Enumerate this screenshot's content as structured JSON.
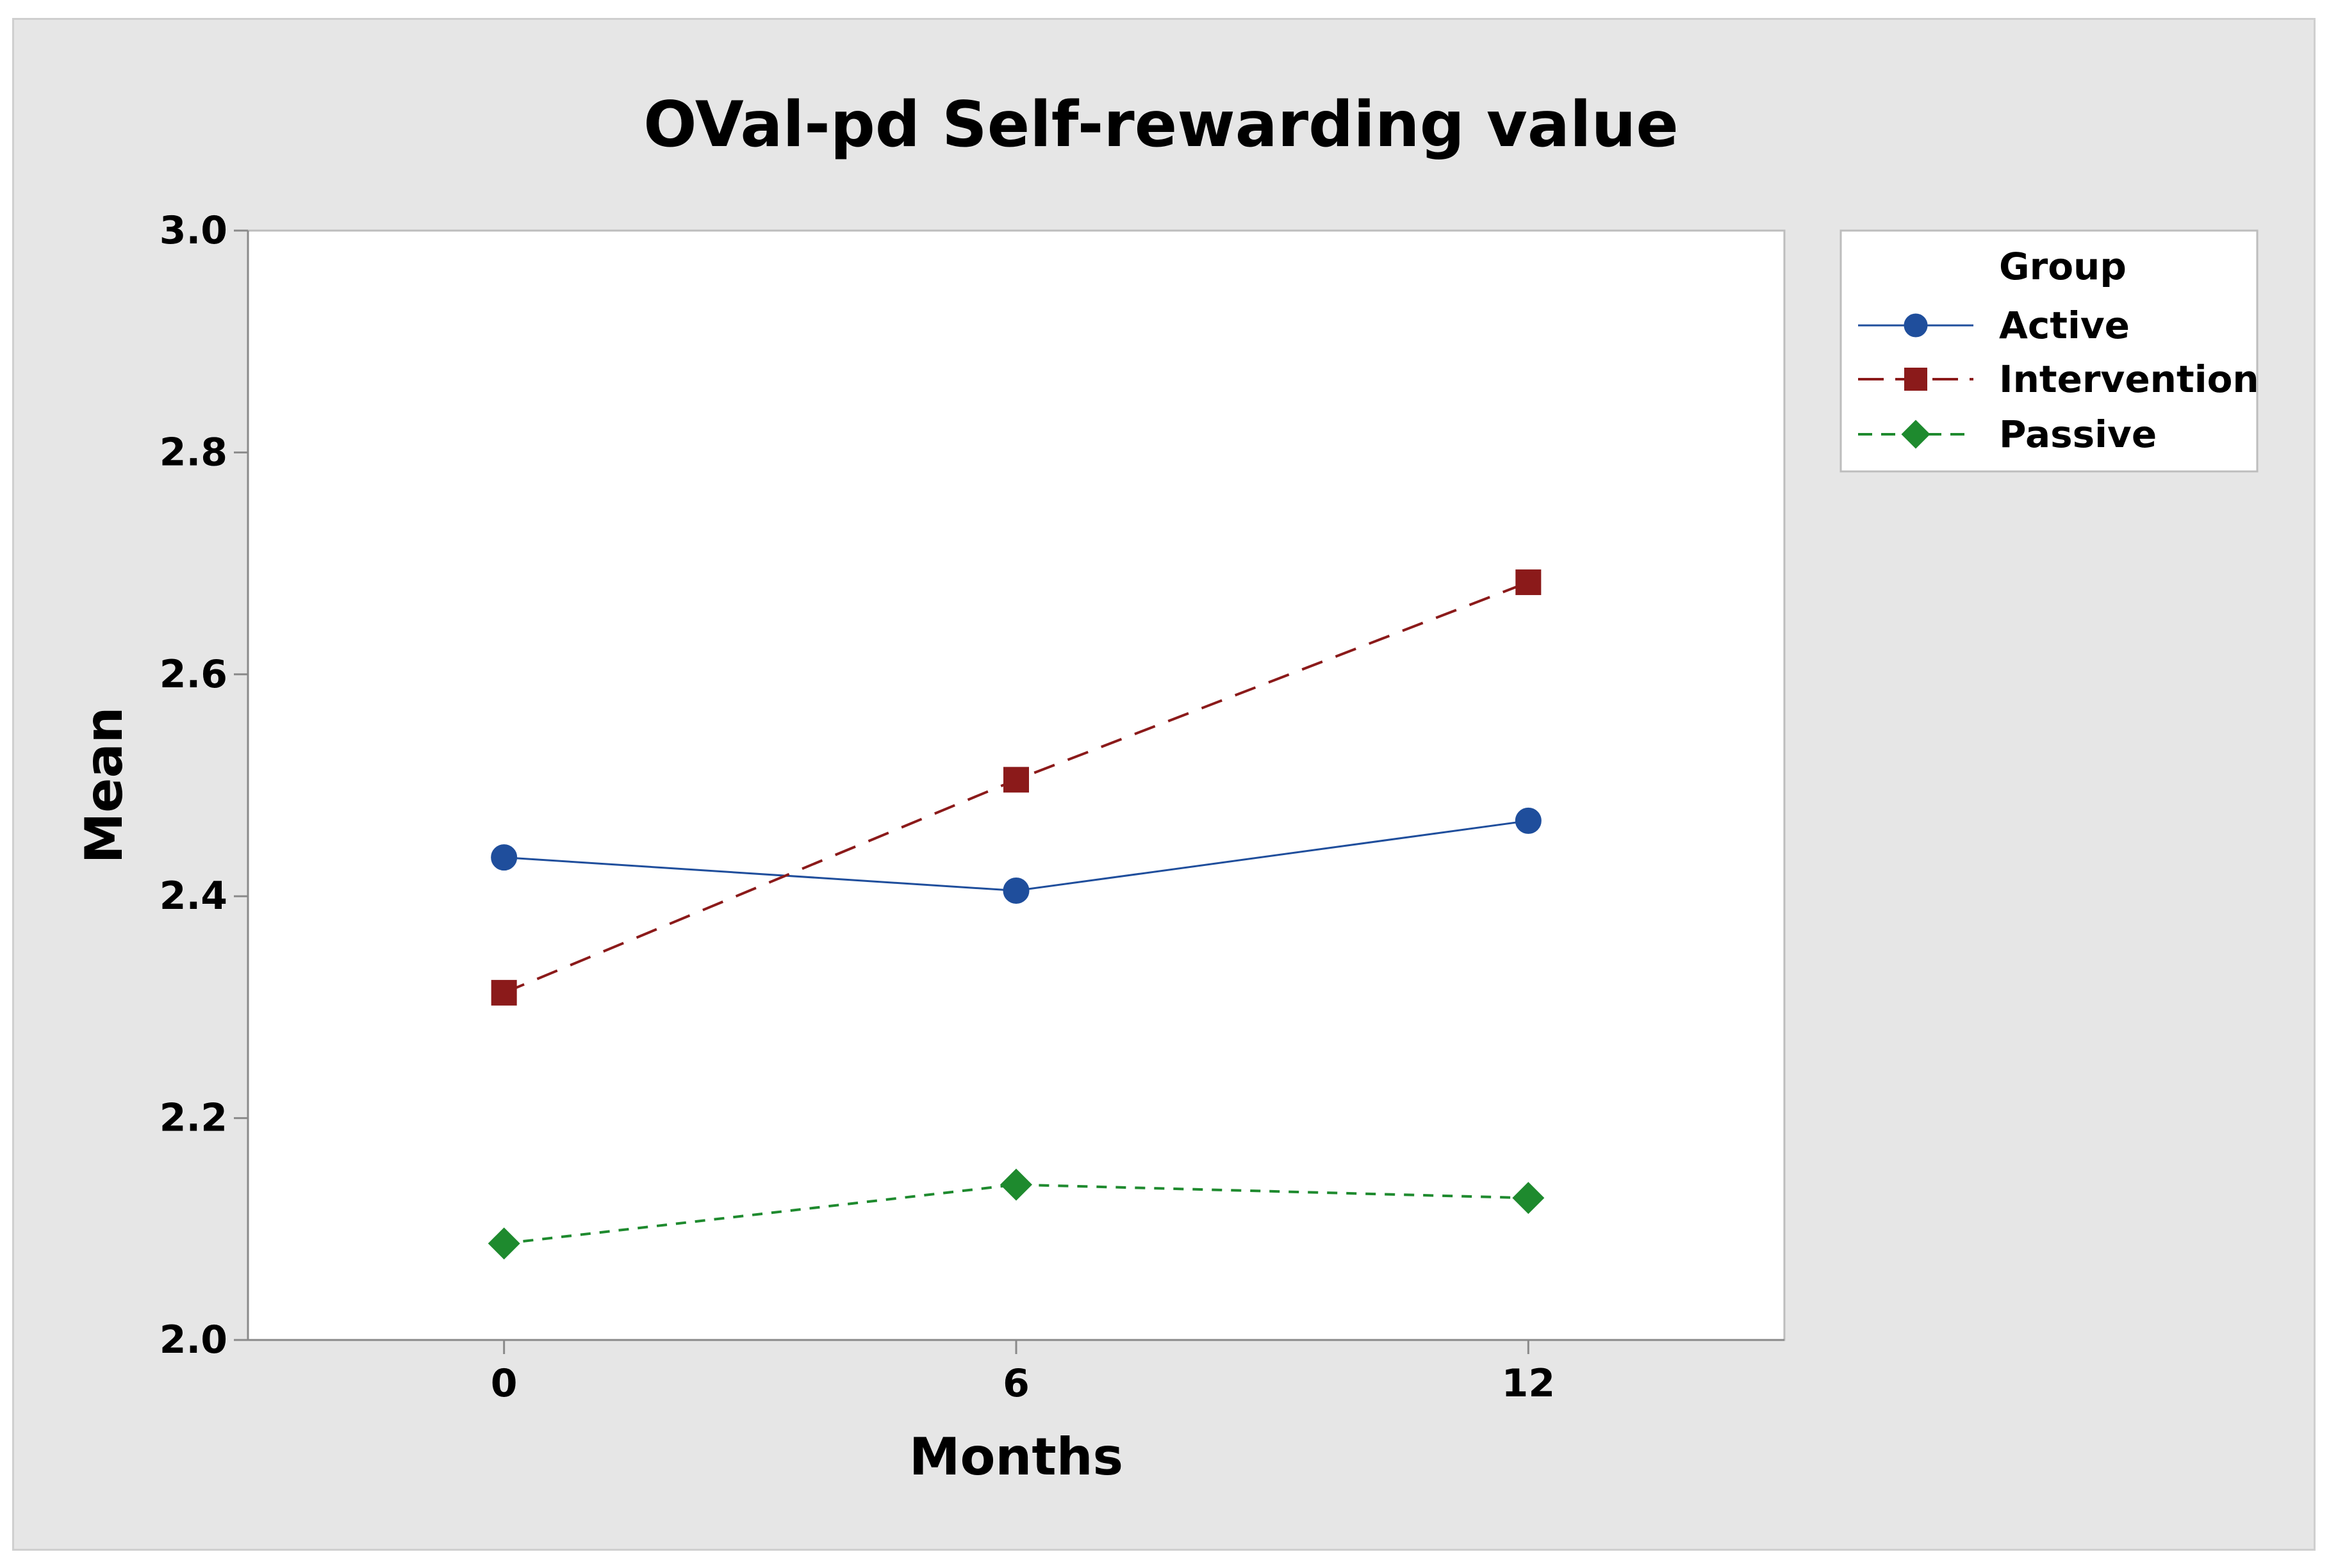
{
  "chart_data": {
    "type": "line",
    "title": "OVal-pd Self-rewarding value",
    "xlabel": "Months",
    "ylabel": "Mean",
    "x": [
      0,
      6,
      12
    ],
    "x_tick_labels": [
      "0",
      "6",
      "12"
    ],
    "xlim": [
      -3,
      15
    ],
    "ylim": [
      2.0,
      3.0
    ],
    "y_ticks": [
      2.0,
      2.2,
      2.4,
      2.6,
      2.8,
      3.0
    ],
    "y_tick_labels": [
      "2.0",
      "2.2",
      "2.4",
      "2.6",
      "2.8",
      "3.0"
    ],
    "grid": false,
    "legend": {
      "title": "Group",
      "placement": "right"
    },
    "series": [
      {
        "name": "Active",
        "values": [
          2.435,
          2.405,
          2.468
        ],
        "color": "#1f4e9c",
        "marker": "circle",
        "line_style": "solid"
      },
      {
        "name": "Intervention",
        "values": [
          2.313,
          2.505,
          2.683
        ],
        "color": "#8b1a1a",
        "marker": "square",
        "line_style": "long-dash"
      },
      {
        "name": "Passive",
        "values": [
          2.087,
          2.14,
          2.128
        ],
        "color": "#1e8a2e",
        "marker": "diamond",
        "line_style": "short-dash"
      }
    ]
  }
}
